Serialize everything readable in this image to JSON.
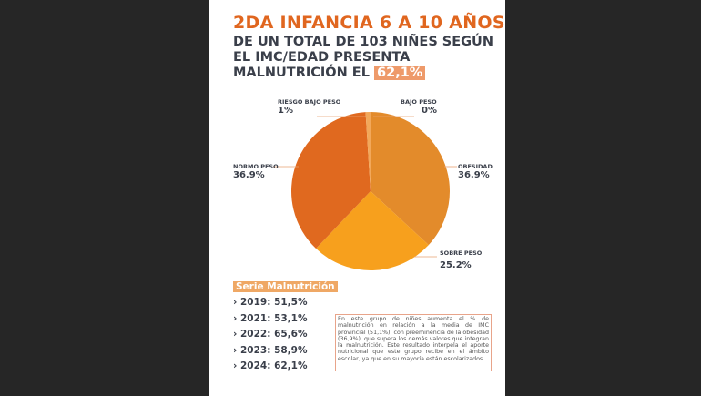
{
  "title": "2DA INFANCIA 6 A 10 AÑOS",
  "subtitle": {
    "line1": "DE UN TOTAL DE 103 NIÑES SEGÚN",
    "line2": "EL IMC/EDAD PRESENTA",
    "line3": "MALNUTRICIÓN EL",
    "highlight": "62,1%"
  },
  "chart_data": {
    "type": "pie",
    "title": "",
    "slices": [
      {
        "label": "OBESIDAD",
        "value": 36.9,
        "display": "36.9%",
        "color": "#e38b2b"
      },
      {
        "label": "SOBRE PESO",
        "value": 25.2,
        "display": "25.2%",
        "color": "#f7a01d"
      },
      {
        "label": "NORMO PESO",
        "value": 36.9,
        "display": "36.9%",
        "color": "#e0691f"
      },
      {
        "label": "RIESGO BAJO PESO",
        "value": 1,
        "display": "1%",
        "color": "#f2a85a"
      },
      {
        "label": "BAJO PESO",
        "value": 0,
        "display": "0%",
        "color": "#f5b870"
      }
    ]
  },
  "serie": {
    "heading": "Serie Malnutrición",
    "items": [
      "2019: 51,5%",
      "2021: 53,1%",
      "2022: 65,6%",
      "2023: 58,9%",
      "2024: 62,1%"
    ]
  },
  "note": "En este grupo de niñes aumenta el % de malnutrición en relación a la media de IMC provincial (51,1%), con preeminencia de la obesidad (36,9%), que supera los demás valores que integran la malnutrición. Este resultado interpela el aporte nutricional que este grupo recibe en el ámbito escolar, ya que en su mayoría están escolarizados."
}
